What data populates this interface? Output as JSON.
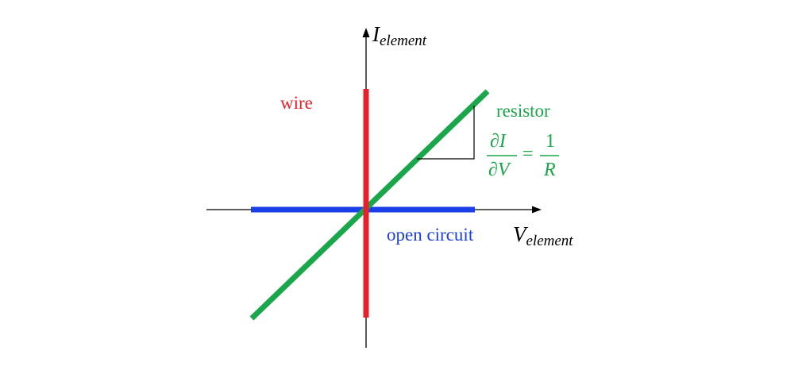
{
  "axes": {
    "y_label": {
      "main": "I",
      "sub": "element"
    },
    "x_label": {
      "main": "V",
      "sub": "element"
    }
  },
  "elements": {
    "wire": {
      "label": "wire",
      "color": "#e8202a"
    },
    "resistor": {
      "label": "resistor",
      "color": "#1aa64a"
    },
    "open_circuit": {
      "label": "open circuit",
      "color": "#1a3ee8"
    }
  },
  "slope_formula": {
    "lhs_num": "∂I",
    "lhs_den": "∂V",
    "equals": "=",
    "rhs_num": "1",
    "rhs_den": "R"
  }
}
